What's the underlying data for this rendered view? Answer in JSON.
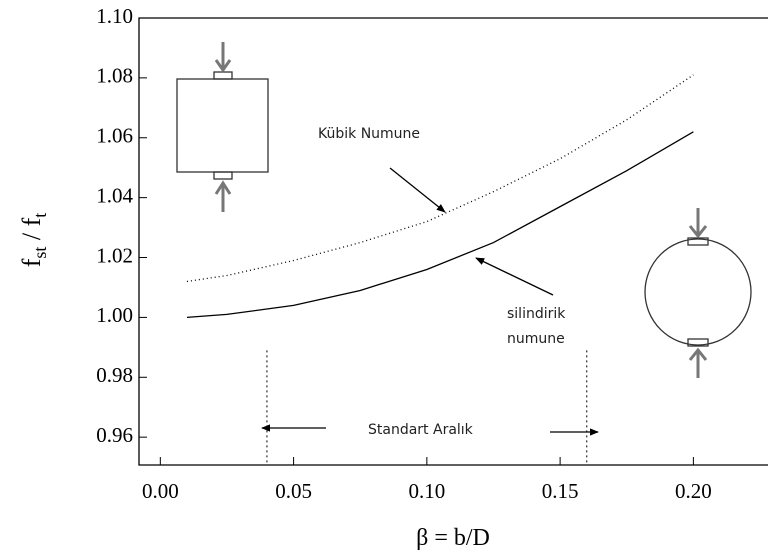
{
  "chart_data": {
    "type": "line",
    "x_label": "β = b/D",
    "y_label_parts": [
      "f",
      "st",
      " / f",
      "t"
    ],
    "x": [
      0.01,
      0.025,
      0.05,
      0.075,
      0.1,
      0.125,
      0.15,
      0.175,
      0.2
    ],
    "series": [
      {
        "color": "#000000",
        "dash": "1 3",
        "values": [
          1.012,
          1.014,
          1.019,
          1.025,
          1.032,
          1.042,
          1.053,
          1.066,
          1.081
        ]
      },
      {
        "color": "#000000",
        "dash": "none",
        "values": [
          1.0,
          1.001,
          1.004,
          1.009,
          1.016,
          1.025,
          1.037,
          1.049,
          1.062
        ]
      }
    ],
    "xlim": [
      -0.008,
      0.228
    ],
    "ylim": [
      0.9507,
      1.1
    ],
    "xticks": [
      {
        "value": 0,
        "label": "0.00"
      },
      {
        "value": 0.05,
        "label": "0.05"
      },
      {
        "value": 0.1,
        "label": "0.10"
      },
      {
        "value": 0.15,
        "label": "0.15"
      },
      {
        "value": 0.2,
        "label": "0.20"
      }
    ],
    "yticks": [
      {
        "value": 0.96,
        "label": "0.96"
      },
      {
        "value": 0.98,
        "label": "0.98"
      },
      {
        "value": 1.0,
        "label": "1.00"
      },
      {
        "value": 1.02,
        "label": "1.02"
      },
      {
        "value": 1.04,
        "label": "1.04"
      },
      {
        "value": 1.06,
        "label": "1.06"
      },
      {
        "value": 1.08,
        "label": "1.08"
      },
      {
        "value": 1.1,
        "label": "1.10"
      }
    ],
    "standard_range": [
      0.04,
      0.16
    ],
    "annotations": {
      "cube": "Kübik Numune",
      "cylinder": [
        "silindirik",
        "numune"
      ],
      "range": "Standart Aralık"
    }
  }
}
